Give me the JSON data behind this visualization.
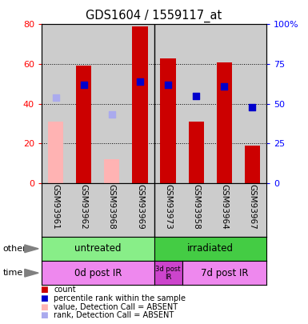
{
  "title": "GDS1604 / 1559117_at",
  "samples": [
    "GSM93961",
    "GSM93962",
    "GSM93968",
    "GSM93969",
    "GSM93973",
    "GSM93958",
    "GSM93964",
    "GSM93967"
  ],
  "bar_values_present": [
    null,
    59,
    null,
    79,
    63,
    31,
    61,
    19
  ],
  "bar_values_absent": [
    31,
    null,
    12,
    null,
    null,
    null,
    null,
    null
  ],
  "rank_values_present": [
    null,
    62,
    null,
    64,
    62,
    55,
    61,
    48
  ],
  "rank_values_absent": [
    54,
    null,
    43,
    null,
    null,
    null,
    null,
    null
  ],
  "bar_color_present": "#cc0000",
  "bar_color_absent": "#ffb3b3",
  "rank_color_present": "#0000cc",
  "rank_color_absent": "#aaaaee",
  "ylim_left": [
    0,
    80
  ],
  "ylim_right": [
    0,
    100
  ],
  "yticks_left": [
    0,
    20,
    40,
    60,
    80
  ],
  "yticks_right": [
    0,
    25,
    50,
    75,
    100
  ],
  "ytick_labels_right": [
    "0",
    "25",
    "50",
    "75",
    "100%"
  ],
  "color_untreated": "#88ee88",
  "color_irradiated": "#44cc44",
  "color_time_light": "#ee88ee",
  "color_time_dark": "#cc44cc",
  "col_bg_color": "#cccccc",
  "group_divider": 3.5,
  "time_divider": 4.5
}
